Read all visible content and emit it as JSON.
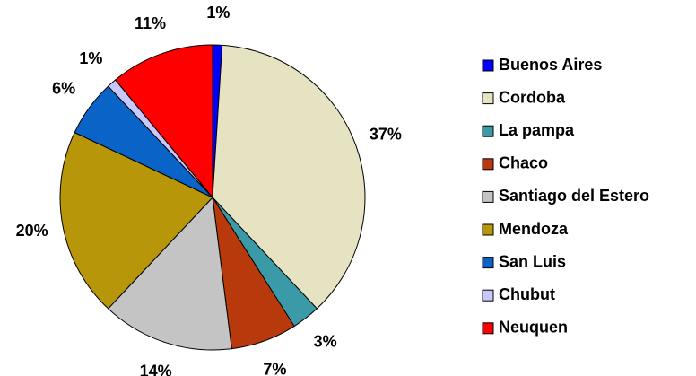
{
  "chart_data": {
    "type": "pie",
    "categories": [
      "Buenos Aires",
      "Cordoba",
      "La pampa",
      "Chaco",
      "Santiago del Estero",
      "Mendoza",
      "San Luis",
      "Chubut",
      "Neuquen"
    ],
    "values": [
      1,
      37,
      3,
      7,
      14,
      20,
      6,
      1,
      11
    ],
    "value_labels": [
      "1%",
      "37%",
      "3%",
      "7%",
      "14%",
      "20%",
      "6%",
      "1%",
      "11%"
    ],
    "colors": [
      "#0000ff",
      "#e6e3c3",
      "#3a9aa8",
      "#b83a0c",
      "#c4c4c4",
      "#b8960a",
      "#0a64c8",
      "#c8c8ff",
      "#ff0000"
    ],
    "legend": "right"
  }
}
